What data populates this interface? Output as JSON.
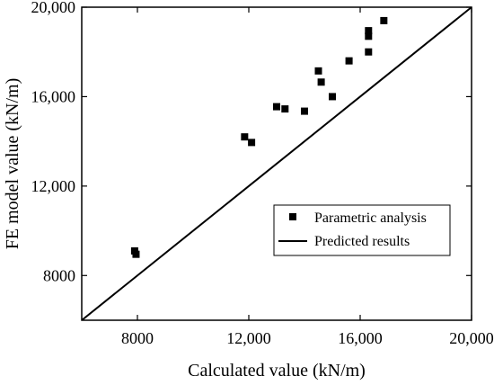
{
  "chart_data": {
    "type": "scatter",
    "xlabel": "Calculated value (kN/m)",
    "ylabel": "FE model value (kN/m)",
    "xlim": [
      6000,
      20000
    ],
    "ylim": [
      6000,
      20000
    ],
    "x_ticks": [
      8000,
      12000,
      16000,
      20000
    ],
    "x_tick_labels": [
      "8000",
      "12,000",
      "16,000",
      "20,000"
    ],
    "y_ticks": [
      8000,
      12000,
      16000,
      20000
    ],
    "y_tick_labels": [
      "8000",
      "12,000",
      "16,000",
      "20,000"
    ],
    "grid": false,
    "legend_position": "center-right",
    "series": [
      {
        "name": "Parametric analysis",
        "type": "scatter",
        "marker": "square",
        "color": "#000000",
        "points": [
          {
            "x": 7900,
            "y": 9100
          },
          {
            "x": 7950,
            "y": 8950
          },
          {
            "x": 11850,
            "y": 14200
          },
          {
            "x": 12100,
            "y": 13950
          },
          {
            "x": 13000,
            "y": 15550
          },
          {
            "x": 13300,
            "y": 15450
          },
          {
            "x": 14000,
            "y": 15350
          },
          {
            "x": 14500,
            "y": 17150
          },
          {
            "x": 14600,
            "y": 16650
          },
          {
            "x": 15000,
            "y": 16000
          },
          {
            "x": 15600,
            "y": 17600
          },
          {
            "x": 16300,
            "y": 18700
          },
          {
            "x": 16300,
            "y": 18950
          },
          {
            "x": 16300,
            "y": 18000
          },
          {
            "x": 16850,
            "y": 19400
          }
        ]
      },
      {
        "name": "Predicted results",
        "type": "line",
        "color": "#000000",
        "points": [
          {
            "x": 6000,
            "y": 6000
          },
          {
            "x": 20000,
            "y": 20000
          }
        ]
      }
    ]
  }
}
